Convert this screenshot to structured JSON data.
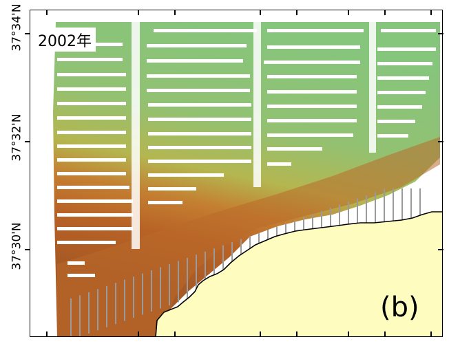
{
  "map": {
    "year_label": "2002年",
    "panel_label": "(b)",
    "lat_labels": [
      "37°34'N",
      "37°32'N",
      "37°30'N"
    ]
  },
  "colors": {
    "deep": "#7fbe78",
    "mid": "#b8b64a",
    "shallow": "#c0682a",
    "land": "#fffcc0",
    "coast": "#000000"
  }
}
